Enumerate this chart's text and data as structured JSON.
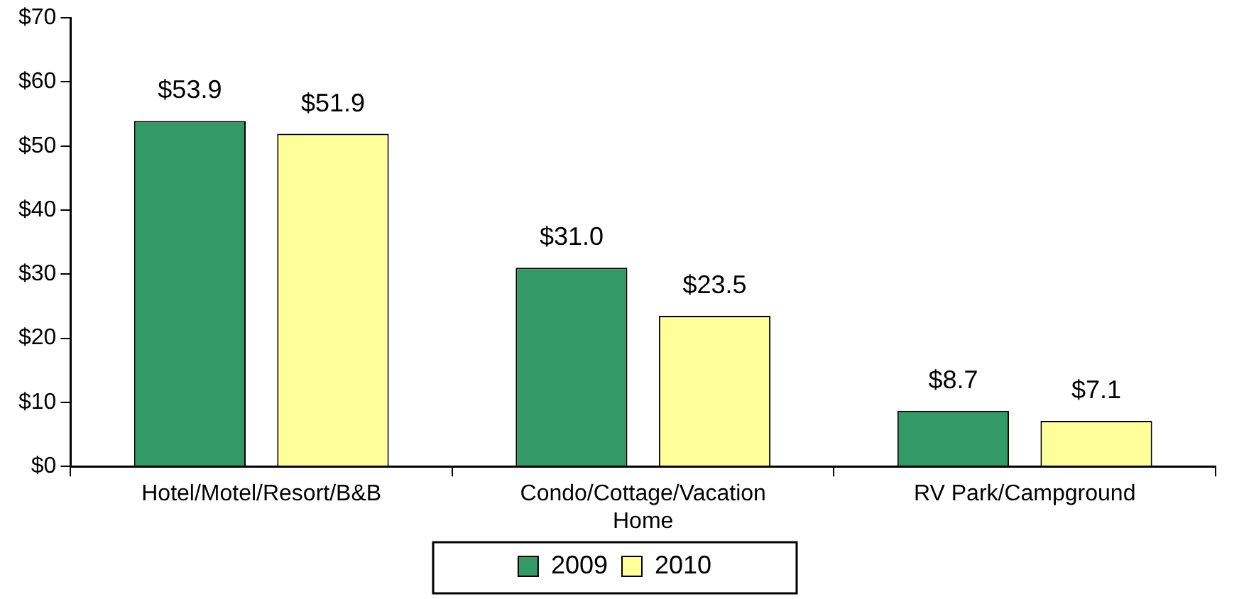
{
  "chart_data": {
    "type": "bar",
    "categories": [
      "Hotel/Motel/Resort/B&B",
      "Condo/Cottage/Vacation Home",
      "RV Park/Campground"
    ],
    "series": [
      {
        "name": "2009",
        "color": "#339966",
        "values": [
          53.9,
          31.0,
          8.7
        ],
        "value_labels": [
          "$53.9",
          "$31.0",
          "$8.7"
        ]
      },
      {
        "name": "2010",
        "color": "#ffff99",
        "values": [
          51.9,
          23.5,
          7.1
        ],
        "value_labels": [
          "$51.9",
          "$23.5",
          "$7.1"
        ]
      }
    ],
    "ylim": [
      0,
      70
    ],
    "yticks": [
      {
        "value": 0,
        "label": "$0"
      },
      {
        "value": 10,
        "label": "$10"
      },
      {
        "value": 20,
        "label": "$20"
      },
      {
        "value": 30,
        "label": "$30"
      },
      {
        "value": 40,
        "label": "$40"
      },
      {
        "value": 50,
        "label": "$50"
      },
      {
        "value": 60,
        "label": "$60"
      },
      {
        "value": 70,
        "label": "$70"
      }
    ],
    "grid": false,
    "legend": "bottom"
  }
}
